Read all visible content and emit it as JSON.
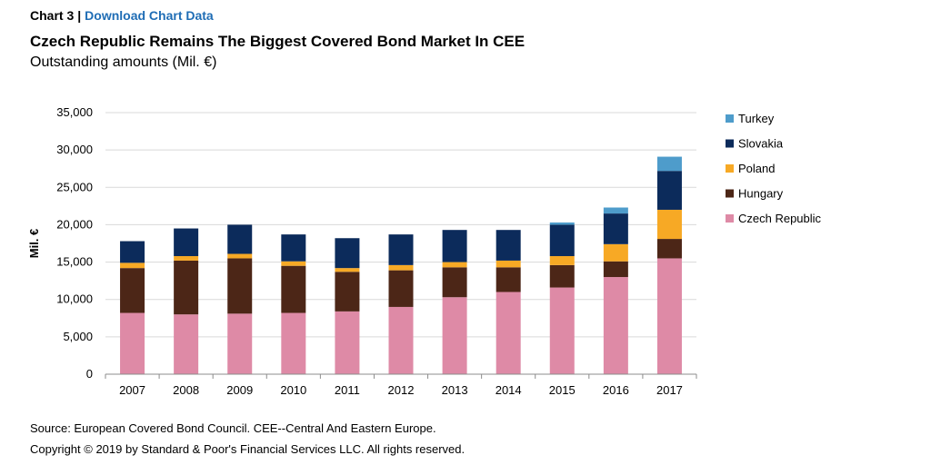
{
  "header": {
    "chart_label": "Chart 3",
    "separator": "|",
    "download_link": "Download Chart Data",
    "title": "Czech Republic Remains The Biggest Covered Bond Market In CEE",
    "subtitle": "Outstanding amounts (Mil. €)"
  },
  "footer": {
    "source": "Source: European Covered Bond Council. CEE--Central And Eastern Europe.",
    "copyright": "Copyright © 2019 by Standard & Poor's Financial Services LLC. All rights reserved."
  },
  "chart_data": {
    "type": "bar",
    "stacked": true,
    "categories": [
      "2007",
      "2008",
      "2009",
      "2010",
      "2011",
      "2012",
      "2013",
      "2014",
      "2015",
      "2016",
      "2017"
    ],
    "ylabel": "Mil. €",
    "ylim": [
      0,
      35000
    ],
    "yticks": [
      0,
      5000,
      10000,
      15000,
      20000,
      25000,
      30000,
      35000
    ],
    "ytick_labels": [
      "0",
      "5,000",
      "10,000",
      "15,000",
      "20,000",
      "25,000",
      "30,000",
      "35,000"
    ],
    "grid": true,
    "legend_position": "right",
    "series": [
      {
        "name": "Czech Republic",
        "color": "#de8aa6",
        "values": [
          8200,
          8000,
          8100,
          8200,
          8400,
          9000,
          10300,
          11000,
          11600,
          13000,
          15500
        ]
      },
      {
        "name": "Hungary",
        "color": "#4c2617",
        "values": [
          6000,
          7200,
          7400,
          6300,
          5300,
          4900,
          4000,
          3300,
          3000,
          2100,
          2600
        ]
      },
      {
        "name": "Poland",
        "color": "#f7a925",
        "values": [
          700,
          600,
          600,
          600,
          500,
          700,
          700,
          900,
          1200,
          2300,
          3900
        ]
      },
      {
        "name": "Slovakia",
        "color": "#0c2b5b",
        "values": [
          2900,
          3700,
          3900,
          3600,
          4000,
          4100,
          4300,
          4100,
          4200,
          4100,
          5200
        ]
      },
      {
        "name": "Turkey",
        "color": "#4e9ccb",
        "values": [
          0,
          0,
          0,
          0,
          0,
          0,
          0,
          0,
          300,
          800,
          1900
        ]
      }
    ]
  }
}
